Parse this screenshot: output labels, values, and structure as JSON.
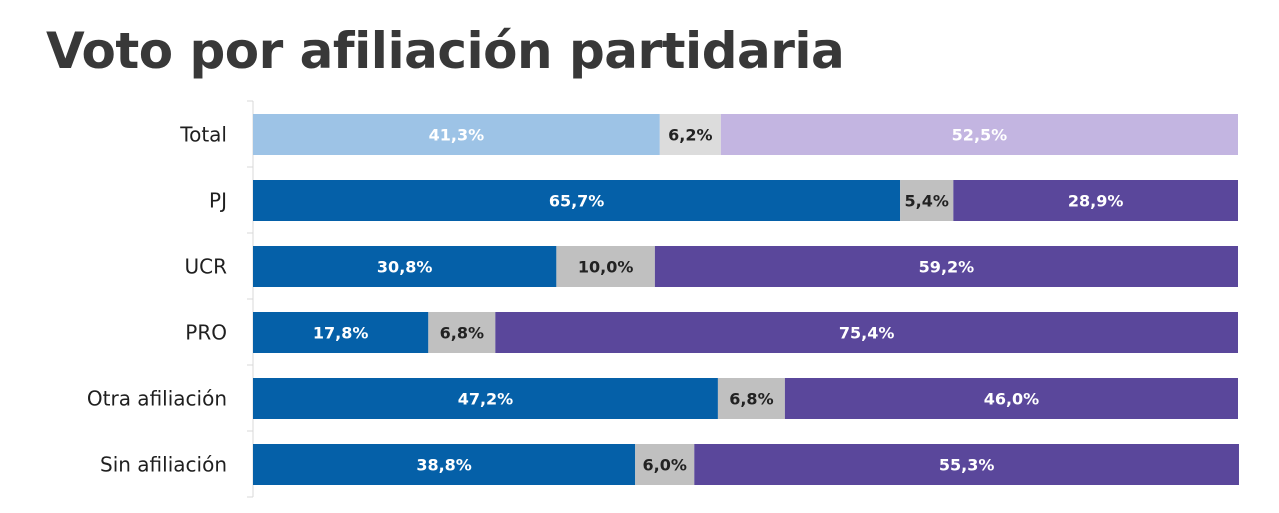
{
  "title": "Voto por afiliación partidaria",
  "colors": {
    "total_a": "#9dc3e6",
    "total_b": "#dcdcdc",
    "total_c": "#c3b5e1",
    "a": "#0560a8",
    "b": "#c0c0c0",
    "c": "#5a479b",
    "label_light": "#ffffff",
    "label_dark": "#222222",
    "axis": "#d9d9d9"
  },
  "chart_data": {
    "type": "bar",
    "orientation": "horizontal",
    "stacked": true,
    "title": "Voto por afiliación partidaria",
    "categories": [
      "Total",
      "PJ",
      "UCR",
      "PRO",
      "Otra afiliación",
      "Sin afiliación"
    ],
    "series": [
      {
        "values": [
          41.3,
          65.7,
          30.8,
          17.8,
          47.2,
          38.8
        ],
        "labels": [
          "41,3%",
          "65,7%",
          "30,8%",
          "17,8%",
          "47,2%",
          "38,8%"
        ]
      },
      {
        "values": [
          6.2,
          5.4,
          10.0,
          6.8,
          6.8,
          6.0
        ],
        "labels": [
          "6,2%",
          "5,4%",
          "10,0%",
          "6,8%",
          "6,8%",
          "6,0%"
        ]
      },
      {
        "values": [
          52.5,
          28.9,
          59.2,
          75.4,
          46.0,
          55.3
        ],
        "labels": [
          "52,5%",
          "28,9%",
          "59,2%",
          "75,4%",
          "46,0%",
          "55,3%"
        ]
      }
    ],
    "xlim": [
      0,
      100
    ],
    "grid": false,
    "legend": "none"
  }
}
